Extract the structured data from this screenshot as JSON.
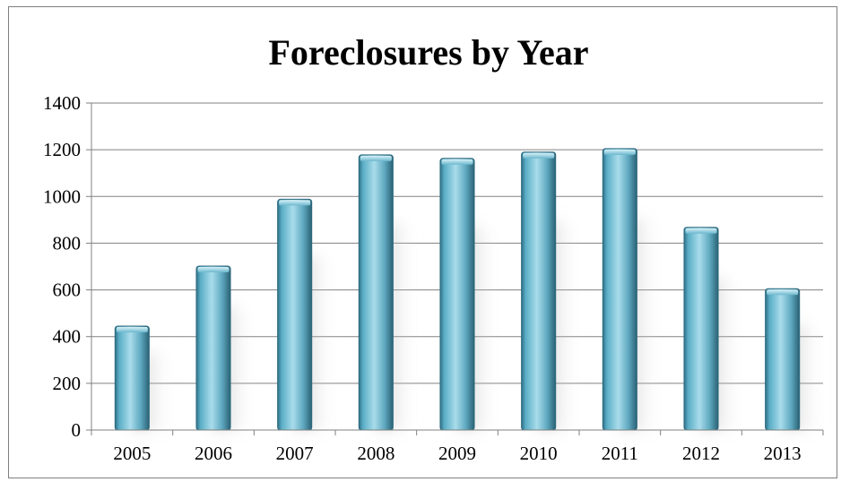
{
  "chart_data": {
    "type": "bar",
    "title": "Foreclosures by Year",
    "categories": [
      "2005",
      "2006",
      "2007",
      "2008",
      "2009",
      "2010",
      "2011",
      "2012",
      "2013"
    ],
    "values": [
      445,
      702,
      988,
      1178,
      1163,
      1190,
      1205,
      868,
      605
    ],
    "ylim": [
      0,
      1400
    ],
    "yticks": [
      "0",
      "200",
      "400",
      "600",
      "800",
      "1000",
      "1200",
      "1400"
    ],
    "grid": true,
    "legend": "none",
    "bar_color": "#4f9db5"
  }
}
